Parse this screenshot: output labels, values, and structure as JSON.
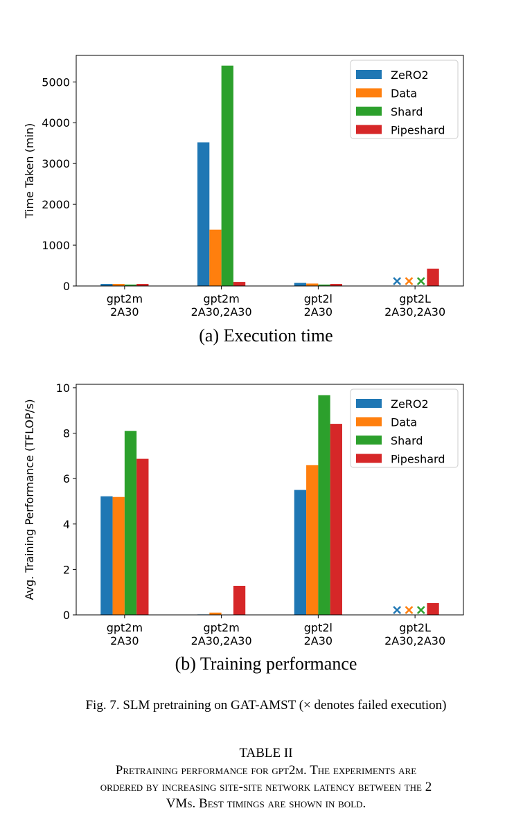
{
  "colors": {
    "ZeRO2": "#1f77b4",
    "Data": "#ff7f0e",
    "Shard": "#2ca02c",
    "Pipeshard": "#d62728"
  },
  "chart_data": [
    {
      "type": "bar",
      "caption": "(a) Execution time",
      "ylabel": "Time Taken (min)",
      "ylim": [
        0,
        5650
      ],
      "yticks": [
        0,
        1000,
        2000,
        3000,
        4000,
        5000
      ],
      "categories": [
        [
          "gpt2m",
          "2A30"
        ],
        [
          "gpt2m",
          "2A30,2A30"
        ],
        [
          "gpt2l",
          "2A30"
        ],
        [
          "gpt2L",
          "2A30,2A30"
        ]
      ],
      "legend_position": "top-right",
      "series": [
        {
          "name": "ZeRO2",
          "values": [
            50,
            3520,
            75,
            null
          ],
          "failed": [
            false,
            false,
            false,
            true
          ]
        },
        {
          "name": "Data",
          "values": [
            50,
            1380,
            60,
            null
          ],
          "failed": [
            false,
            false,
            false,
            true
          ]
        },
        {
          "name": "Shard",
          "values": [
            35,
            5400,
            35,
            null
          ],
          "failed": [
            false,
            false,
            false,
            true
          ]
        },
        {
          "name": "Pipeshard",
          "values": [
            50,
            100,
            50,
            425
          ],
          "failed": [
            false,
            false,
            false,
            false
          ]
        }
      ]
    },
    {
      "type": "bar",
      "caption": "(b) Training performance",
      "ylabel": "Avg. Training Performance (TFLOP/s)",
      "ylim": [
        0,
        10.15
      ],
      "yticks": [
        0,
        2,
        4,
        6,
        8,
        10
      ],
      "categories": [
        [
          "gpt2m",
          "2A30"
        ],
        [
          "gpt2m",
          "2A30,2A30"
        ],
        [
          "gpt2l",
          "2A30"
        ],
        [
          "gpt2L",
          "2A30,2A30"
        ]
      ],
      "legend_position": "top-right",
      "series": [
        {
          "name": "ZeRO2",
          "values": [
            5.22,
            0.02,
            5.5,
            null
          ],
          "failed": [
            false,
            false,
            false,
            true
          ]
        },
        {
          "name": "Data",
          "values": [
            5.19,
            0.1,
            6.59,
            null
          ],
          "failed": [
            false,
            false,
            false,
            true
          ]
        },
        {
          "name": "Shard",
          "values": [
            8.1,
            0,
            9.67,
            null
          ],
          "failed": [
            false,
            false,
            false,
            true
          ]
        },
        {
          "name": "Pipeshard",
          "values": [
            6.87,
            1.28,
            8.41,
            0.52
          ],
          "failed": [
            false,
            false,
            false,
            false
          ]
        }
      ]
    }
  ],
  "figure_caption": "Fig. 7.  SLM pretraining on GAT-AMST (× denotes failed execution)",
  "table": {
    "title": "TABLE II",
    "caption_line1": "Pretraining performance for gpt2m. The experiments are",
    "caption_line2": "ordered by increasing site-site network latency between the 2",
    "caption_line3": "VMs. Best timings are shown in bold."
  }
}
